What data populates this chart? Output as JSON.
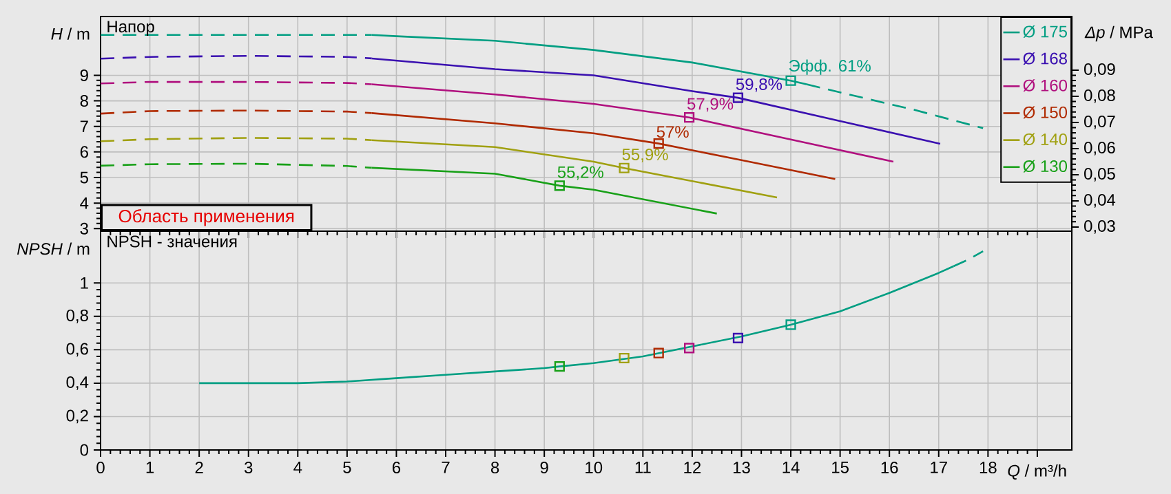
{
  "chart_data": [
    {
      "type": "line",
      "title": "Напор",
      "ylabel": "*H* / m",
      "y2label": "*Δp* / MPa",
      "xlim": [
        0,
        19.7
      ],
      "ylim": [
        2.9,
        11.3
      ],
      "y2lim": [
        0.0284,
        0.1105
      ],
      "xticks": [
        0,
        1,
        2,
        3,
        4,
        5,
        6,
        7,
        8,
        9,
        10,
        11,
        12,
        13,
        14,
        15,
        16,
        17,
        18,
        {
          "value": 19,
          "label": null
        }
      ],
      "yticks": [
        3,
        4,
        5,
        6,
        7,
        8,
        9
      ],
      "y2ticks": [
        {
          "value": 0.03,
          "label": "0,03"
        },
        {
          "value": 0.04,
          "label": "0,04"
        },
        {
          "value": 0.05,
          "label": "0,05"
        },
        {
          "value": 0.06,
          "label": "0,06"
        },
        {
          "value": 0.07,
          "label": "0,07"
        },
        {
          "value": 0.08,
          "label": "0,08"
        },
        {
          "value": 0.09,
          "label": "0,09"
        }
      ],
      "tick_labels": "y",
      "grid": true,
      "legend": "top right",
      "marker": "none",
      "line_style": "solid",
      "series": [
        {
          "line_style": "dashed",
          "color": "#009e82",
          "x": [
            0,
            1,
            3,
            5,
            5.5
          ],
          "values": [
            10.58,
            10.58,
            10.58,
            10.58,
            10.58
          ]
        },
        {
          "name": "Ø 175",
          "color": "#009e82",
          "x": [
            5.5,
            6,
            8,
            10,
            12,
            14,
            14.32
          ],
          "values": [
            10.58,
            10.53,
            10.35,
            9.99,
            9.5,
            8.79,
            8.65
          ]
        },
        {
          "line_style": "dashed",
          "color": "#009e82",
          "x": [
            14.32,
            15,
            16.5,
            17.9
          ],
          "values": [
            8.65,
            8.33,
            7.65,
            6.93
          ]
        },
        {
          "line_style": "dashed",
          "color": "#3a10b0",
          "x": [
            0,
            1,
            3,
            5,
            5.5
          ],
          "values": [
            9.65,
            9.72,
            9.76,
            9.72,
            9.66
          ]
        },
        {
          "name": "Ø 168",
          "color": "#3a10b0",
          "x": [
            5.5,
            8,
            10,
            12,
            12.93,
            15,
            17.03
          ],
          "values": [
            9.66,
            9.24,
            9.0,
            8.38,
            8.12,
            7.21,
            6.32
          ]
        },
        {
          "line_style": "dashed",
          "color": "#b0107e",
          "x": [
            0,
            1,
            3,
            5,
            5.5
          ],
          "values": [
            8.68,
            8.74,
            8.74,
            8.7,
            8.65
          ]
        },
        {
          "name": "Ø 160",
          "color": "#b0107e",
          "x": [
            5.5,
            8,
            10,
            11.94,
            14,
            16.08
          ],
          "values": [
            8.65,
            8.25,
            7.88,
            7.35,
            6.49,
            5.62
          ]
        },
        {
          "line_style": "dashed",
          "color": "#b02a00",
          "x": [
            0,
            1,
            3,
            5,
            5.5
          ],
          "values": [
            7.5,
            7.6,
            7.62,
            7.58,
            7.52
          ]
        },
        {
          "name": "Ø 150",
          "color": "#b02a00",
          "x": [
            5.5,
            8,
            10,
            11.32,
            13,
            14.9
          ],
          "values": [
            7.52,
            7.12,
            6.73,
            6.33,
            5.68,
            4.94
          ]
        },
        {
          "line_style": "dashed",
          "color": "#a0a010",
          "x": [
            0,
            1,
            3,
            5,
            5.5
          ],
          "values": [
            6.42,
            6.5,
            6.55,
            6.52,
            6.46
          ]
        },
        {
          "name": "Ø 140",
          "color": "#a0a010",
          "x": [
            5.5,
            8,
            10,
            10.62,
            13.72
          ],
          "values": [
            6.46,
            6.19,
            5.62,
            5.37,
            4.22
          ]
        },
        {
          "line_style": "dashed",
          "color": "#18a018",
          "x": [
            0,
            1,
            3,
            5,
            5.5
          ],
          "values": [
            5.46,
            5.52,
            5.54,
            5.45,
            5.38
          ]
        },
        {
          "name": "Ø 130",
          "color": "#18a018",
          "x": [
            5.5,
            8,
            9.31,
            10,
            12.5
          ],
          "values": [
            5.38,
            5.15,
            4.68,
            4.52,
            3.59
          ]
        },
        {
          "type": "scatter",
          "marker": "square",
          "x": [
            9.31,
            10.62,
            11.32,
            11.94,
            12.93,
            14.0
          ],
          "values": [
            4.68,
            5.37,
            6.33,
            7.35,
            8.12,
            8.79
          ],
          "colors": [
            "#18a018",
            "#a0a010",
            "#b02a00",
            "#b0107e",
            "#3a10b0",
            "#009e82"
          ]
        }
      ],
      "annotations": [
        {
          "text": "55,2%",
          "x": 9.31,
          "y": 4.68
        },
        {
          "text": "55,9%",
          "x": 10.62,
          "y": 5.37
        },
        {
          "text": "57%",
          "x": 11.32,
          "y": 6.33
        },
        {
          "text": "57,9%",
          "x": 11.94,
          "y": 7.35
        },
        {
          "text": "59,8%",
          "x": 12.93,
          "y": 8.12
        },
        {
          "text": "Эфф. 61%",
          "x": 14.0,
          "y": 8.79
        },
        "Область применения"
      ]
    },
    {
      "type": "line",
      "title": "NPSH - значения",
      "ylabel": "*NPSH* / m",
      "xlabel": "*Q* / m³/h",
      "xlim": [
        0,
        19.7
      ],
      "ylim": [
        0,
        1.31
      ],
      "xticks": [
        0,
        1,
        2,
        3,
        4,
        5,
        6,
        7,
        8,
        9,
        10,
        11,
        12,
        13,
        14,
        15,
        16,
        17,
        18,
        {
          "value": 19,
          "label": null
        }
      ],
      "yticks": [
        0,
        {
          "value": 0.2,
          "label": "0,2"
        },
        {
          "value": 0.4,
          "label": "0,4"
        },
        {
          "value": 0.6,
          "label": "0,6"
        },
        {
          "value": 0.8,
          "label": "0,8"
        },
        1
      ],
      "grid": true,
      "marker": "none",
      "line_style": "solid",
      "series": [
        {
          "color": "#009e82",
          "x": [
            2,
            4,
            5,
            6,
            7,
            8,
            9,
            9.31,
            10,
            11,
            12,
            13,
            14,
            15,
            16,
            17,
            17.3
          ],
          "values": [
            0.4,
            0.4,
            0.41,
            0.43,
            0.45,
            0.47,
            0.49,
            0.5,
            0.52,
            0.56,
            0.62,
            0.68,
            0.75,
            0.83,
            0.94,
            1.06,
            1.1
          ]
        },
        {
          "line_style": "dashed",
          "color": "#009e82",
          "x": [
            17.3,
            17.6,
            17.9
          ],
          "values": [
            1.1,
            1.14,
            1.19
          ]
        },
        {
          "type": "scatter",
          "marker": "square",
          "x": [
            9.31,
            10.62,
            11.32,
            11.94,
            12.93,
            14.0
          ],
          "values": [
            0.5,
            0.55,
            0.58,
            0.61,
            0.67,
            0.75
          ],
          "colors": [
            "#18a018",
            "#a0a010",
            "#b02a00",
            "#b0107e",
            "#3a10b0",
            "#009e82"
          ]
        }
      ]
    }
  ]
}
